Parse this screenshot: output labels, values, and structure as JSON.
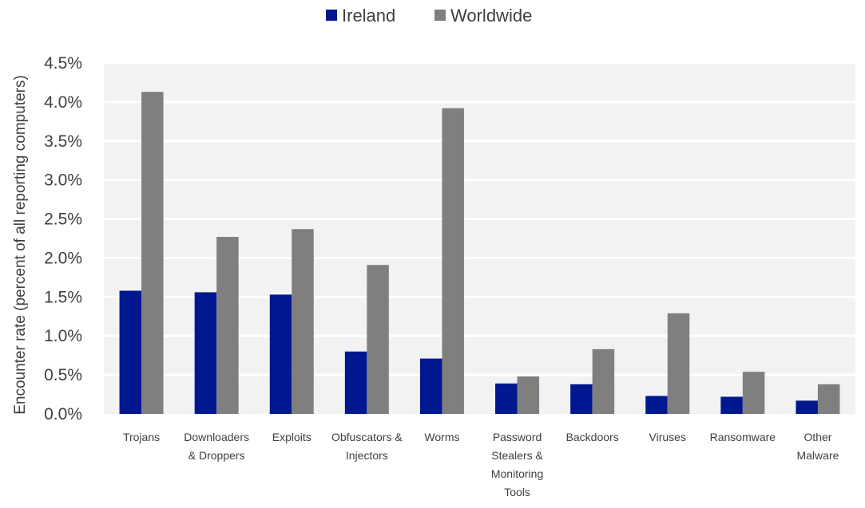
{
  "colors": {
    "ireland": "#00188f",
    "worldwide": "#7f7f7f",
    "plot_background": "#f2f2f2",
    "gridline": "#ffffff",
    "text": "#404040"
  },
  "chart_data": {
    "type": "bar",
    "title": "",
    "xlabel": "",
    "ylabel": "Encounter rate (percent of all reporting computers)",
    "ylim": [
      0,
      4.5
    ],
    "yticks": [
      "0.0%",
      "0.5%",
      "1.0%",
      "1.5%",
      "2.0%",
      "2.5%",
      "3.0%",
      "3.5%",
      "4.0%",
      "4.5%"
    ],
    "grid": true,
    "legend_position": "top-center",
    "categories": [
      [
        "Trojans"
      ],
      [
        "Downloaders",
        "& Droppers"
      ],
      [
        "Exploits"
      ],
      [
        "Obfuscators &",
        "Injectors"
      ],
      [
        "Worms"
      ],
      [
        "Password",
        "Stealers &",
        "Monitoring",
        "Tools"
      ],
      [
        "Backdoors"
      ],
      [
        "Viruses"
      ],
      [
        "Ransomware"
      ],
      [
        "Other",
        "Malware"
      ]
    ],
    "series": [
      {
        "name": "Ireland",
        "color": "#00188f",
        "values": [
          1.58,
          1.56,
          1.53,
          0.8,
          0.71,
          0.39,
          0.38,
          0.23,
          0.22,
          0.17
        ]
      },
      {
        "name": "Worldwide",
        "color": "#7f7f7f",
        "values": [
          4.13,
          2.27,
          2.37,
          1.91,
          3.92,
          0.48,
          0.83,
          1.29,
          0.54,
          0.38
        ]
      }
    ]
  }
}
